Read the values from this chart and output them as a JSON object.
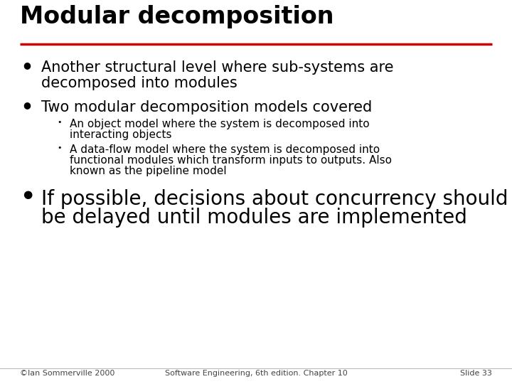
{
  "title": "Modular decomposition",
  "title_color": "#000000",
  "title_fontsize": 24,
  "underline_color": "#cc0000",
  "background_color": "#ffffff",
  "bullet1_line1": "Another structural level where sub-systems are",
  "bullet1_line2": "decomposed into modules",
  "bullet2": "Two modular decomposition models covered",
  "sub_bullet1_line1": "An object model where the system is decomposed into",
  "sub_bullet1_line2": "interacting objects",
  "sub_bullet2_line1": "A data-flow model where the system is decomposed into",
  "sub_bullet2_line2": "functional modules which transform inputs to outputs. Also",
  "sub_bullet2_line3": "known as the pipeline model",
  "bullet3_line1": "If possible, decisions about concurrency should",
  "bullet3_line2": "be delayed until modules are implemented",
  "footer_left": "©Ian Sommerville 2000",
  "footer_center": "Software Engineering, 6th edition. Chapter 10",
  "footer_right": "Slide 33",
  "text_color": "#000000",
  "bullet_color": "#000000",
  "main_bullet_fontsize": 15,
  "sub_bullet_fontsize": 11,
  "large_bullet_fontsize": 20,
  "footer_fontsize": 8
}
